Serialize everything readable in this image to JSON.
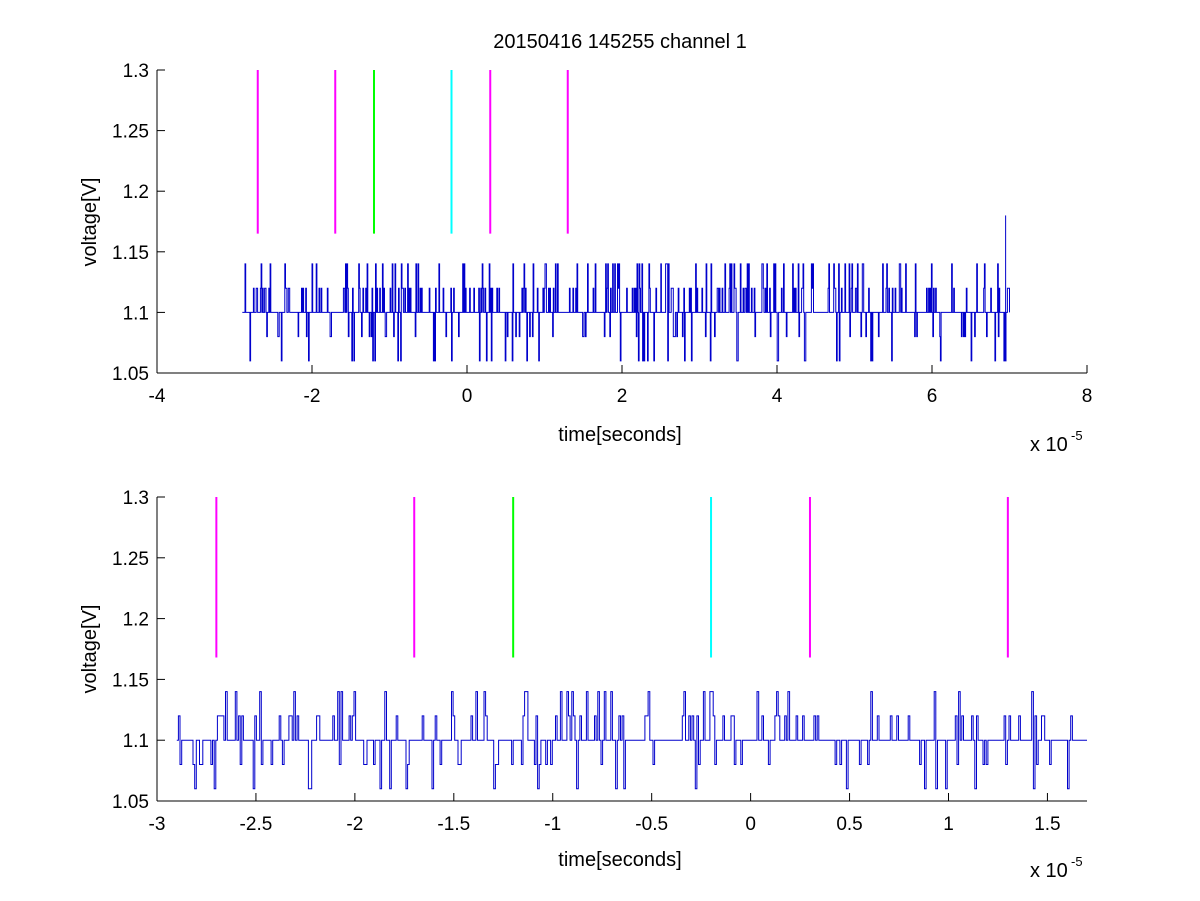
{
  "figure": {
    "title": "20150416 145255 channel 1"
  },
  "colors": {
    "signal": "#0000cc",
    "magenta": "#ff00ff",
    "green": "#00ff00",
    "cyan": "#00ffff",
    "axes": "#000000",
    "background": "#ffffff"
  },
  "chart_data": [
    {
      "type": "line",
      "title": "20150416 145255 channel 1",
      "xlabel": "time[seconds]",
      "ylabel": "voltage[V]",
      "x_exponent_label": "x 10",
      "x_exponent_power": "-5",
      "xlim": [
        -4,
        8
      ],
      "ylim": [
        1.05,
        1.3
      ],
      "x_ticks": [
        -4,
        -2,
        0,
        2,
        4,
        6,
        8
      ],
      "x_tick_labels": [
        "-4",
        "-2",
        "0",
        "2",
        "4",
        "6",
        "8"
      ],
      "y_ticks": [
        1.05,
        1.1,
        1.15,
        1.2,
        1.25,
        1.3
      ],
      "y_tick_labels": [
        "1.05",
        "1.1",
        "1.15",
        "1.2",
        "1.25",
        "1.3"
      ],
      "grid": false,
      "series": [
        {
          "color": "#0000cc",
          "x_start": -2.9,
          "x_end": 7.0,
          "baseline": 1.1,
          "levels": [
            1.06,
            1.08,
            1.1,
            1.12,
            1.14
          ],
          "spike": {
            "x": 6.95,
            "y": 1.18
          }
        }
      ],
      "markers": [
        {
          "x": -2.7,
          "y_from": 1.165,
          "y_to": 1.3,
          "color": "#ff00ff"
        },
        {
          "x": -1.7,
          "y_from": 1.165,
          "y_to": 1.3,
          "color": "#ff00ff"
        },
        {
          "x": -1.2,
          "y_from": 1.165,
          "y_to": 1.3,
          "color": "#00ff00"
        },
        {
          "x": -0.2,
          "y_from": 1.165,
          "y_to": 1.3,
          "color": "#00ffff"
        },
        {
          "x": 0.3,
          "y_from": 1.165,
          "y_to": 1.3,
          "color": "#ff00ff"
        },
        {
          "x": 1.3,
          "y_from": 1.165,
          "y_to": 1.3,
          "color": "#ff00ff"
        }
      ]
    },
    {
      "type": "line",
      "title": "",
      "xlabel": "time[seconds]",
      "ylabel": "voltage[V]",
      "x_exponent_label": "x 10",
      "x_exponent_power": "-5",
      "xlim": [
        -3.0,
        1.7
      ],
      "ylim": [
        1.05,
        1.3
      ],
      "x_ticks": [
        -3,
        -2.5,
        -2,
        -1.5,
        -1,
        -0.5,
        0,
        0.5,
        1,
        1.5
      ],
      "x_tick_labels": [
        "-3",
        "-2.5",
        "-2",
        "-1.5",
        "-1",
        "-0.5",
        "0",
        "0.5",
        "1",
        "1.5"
      ],
      "y_ticks": [
        1.05,
        1.1,
        1.15,
        1.2,
        1.25,
        1.3
      ],
      "y_tick_labels": [
        "1.05",
        "1.1",
        "1.15",
        "1.2",
        "1.25",
        "1.3"
      ],
      "grid": false,
      "series": [
        {
          "color": "#0000cc",
          "x_start": -2.9,
          "x_end": 1.7,
          "baseline": 1.1,
          "levels": [
            1.06,
            1.08,
            1.1,
            1.12,
            1.14
          ]
        }
      ],
      "markers": [
        {
          "x": -2.7,
          "y_from": 1.168,
          "y_to": 1.3,
          "color": "#ff00ff"
        },
        {
          "x": -1.7,
          "y_from": 1.168,
          "y_to": 1.3,
          "color": "#ff00ff"
        },
        {
          "x": -1.2,
          "y_from": 1.168,
          "y_to": 1.3,
          "color": "#00ff00"
        },
        {
          "x": -0.2,
          "y_from": 1.168,
          "y_to": 1.3,
          "color": "#00ffff"
        },
        {
          "x": 0.3,
          "y_from": 1.168,
          "y_to": 1.3,
          "color": "#ff00ff"
        },
        {
          "x": 1.3,
          "y_from": 1.168,
          "y_to": 1.3,
          "color": "#ff00ff"
        }
      ]
    }
  ]
}
